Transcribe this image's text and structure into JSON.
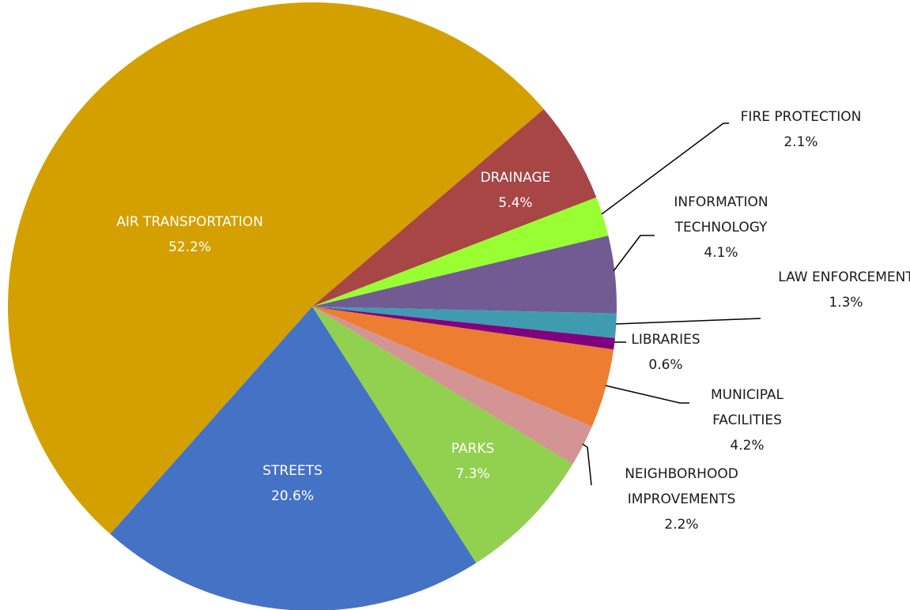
{
  "chart_data": {
    "type": "pie",
    "categories": [
      "AIR TRANSPORTATION",
      "DRAINAGE",
      "FIRE PROTECTION",
      "INFORMATION TECHNOLOGY",
      "LAW ENFORCEMENT",
      "LIBRARIES",
      "MUNICIPAL FACILITIES",
      "NEIGHBORHOOD IMPROVEMENTS",
      "PARKS",
      "STREETS"
    ],
    "values": [
      52.2,
      5.4,
      2.1,
      4.1,
      1.3,
      0.6,
      4.2,
      2.2,
      7.3,
      20.6
    ],
    "value_labels": [
      "52.2%",
      "5.4%",
      "2.1%",
      "4.1%",
      "1.3%",
      "0.6%",
      "4.2%",
      "2.2%",
      "7.3%",
      "20.6%"
    ],
    "colors": [
      "#d4a000",
      "#a84545",
      "#99ff33",
      "#725a93",
      "#3f9bb0",
      "#800080",
      "#ed7d31",
      "#d49494",
      "#92d050",
      "#4472c4"
    ]
  }
}
